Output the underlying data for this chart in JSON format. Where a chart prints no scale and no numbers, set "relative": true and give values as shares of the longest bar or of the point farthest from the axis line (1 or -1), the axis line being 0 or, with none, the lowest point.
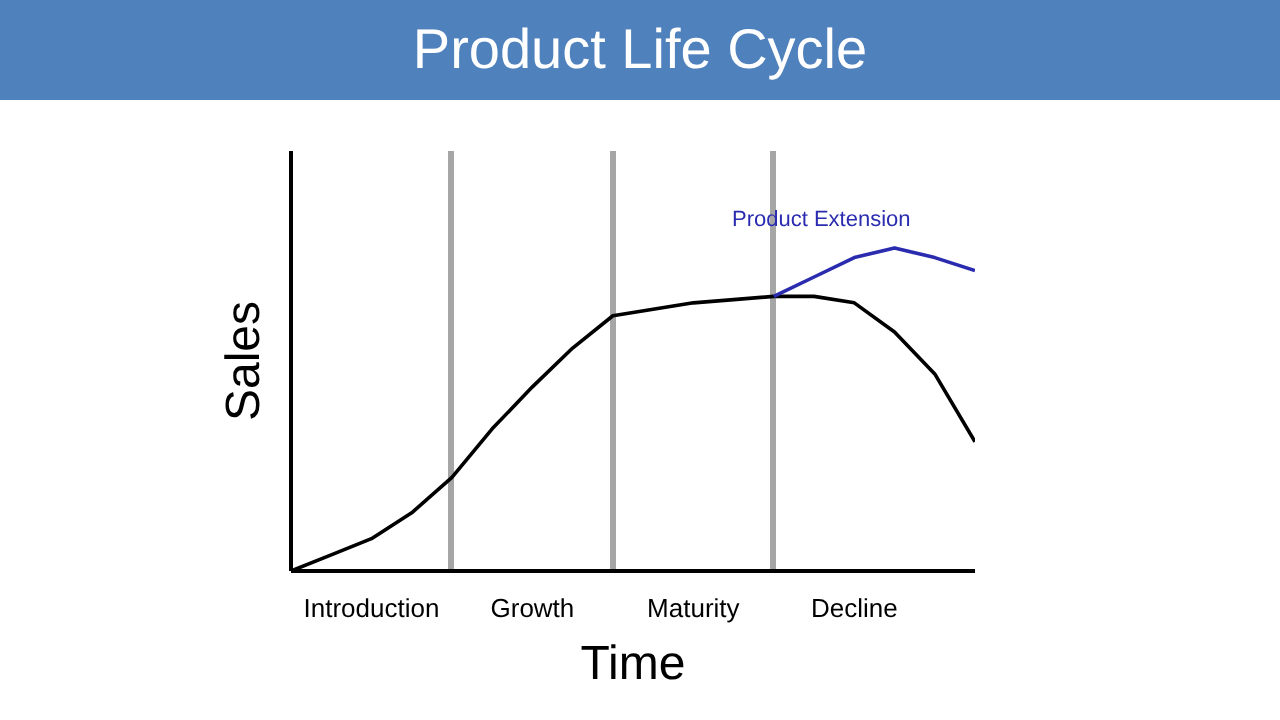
{
  "chart_data": {
    "type": "line",
    "title": "Product Life Cycle",
    "xlabel": "Time",
    "ylabel": "Sales",
    "relative": true,
    "grid": "x",
    "marker": "none",
    "line_style": "solid",
    "categories": [
      null,
      null,
      "Introduction",
      null,
      null,
      null,
      "Growth",
      null,
      null,
      null,
      "Maturity",
      null,
      null,
      null,
      "Decline",
      null,
      null,
      null
    ],
    "series": [
      {
        "color": "#000000",
        "values": [
          0,
          0.05,
          0.1,
          0.18,
          0.29,
          0.44,
          0.57,
          0.69,
          0.79,
          0.81,
          0.83,
          0.84,
          0.85,
          0.85,
          0.83,
          0.74,
          0.61,
          0.4
        ]
      },
      {
        "name": "Product Extension",
        "color": "#2b2bb0",
        "values": [
          null,
          null,
          null,
          null,
          null,
          null,
          null,
          null,
          null,
          null,
          null,
          null,
          0.85,
          0.91,
          0.97,
          1.0,
          0.97,
          0.93
        ]
      }
    ]
  }
}
